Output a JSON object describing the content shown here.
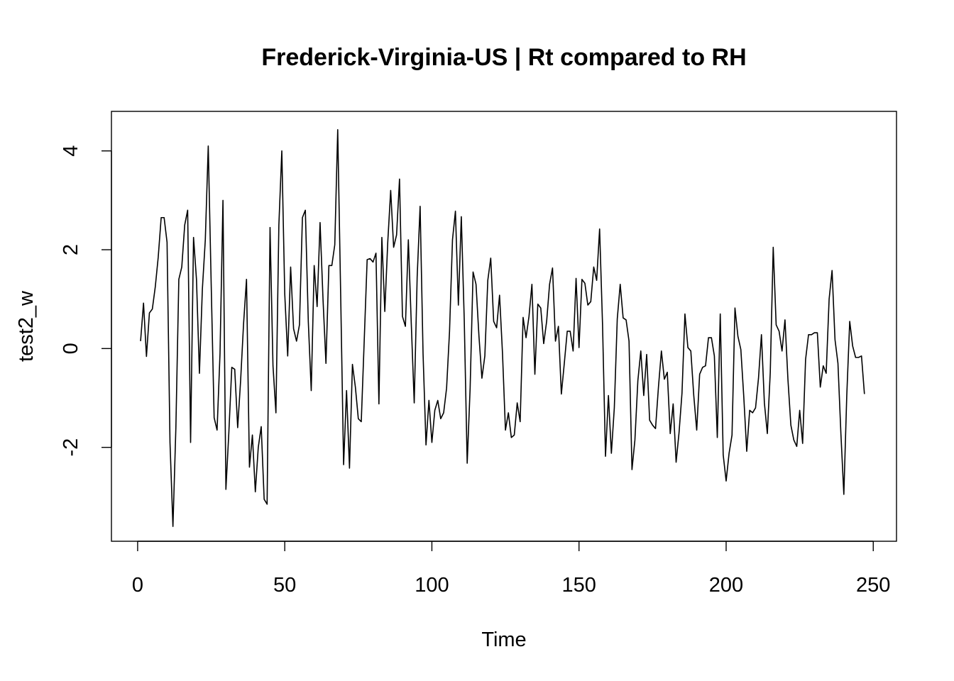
{
  "chart_data": {
    "type": "line",
    "title": "Frederick-Virginia-US | Rt compared to RH",
    "xlabel": "Time",
    "ylabel": "test2_w",
    "xlim": [
      -8.9,
      257.9
    ],
    "ylim": [
      -3.9,
      4.8
    ],
    "xticks": [
      0,
      50,
      100,
      150,
      200,
      250
    ],
    "yticks": [
      -2,
      0,
      2,
      4
    ],
    "grid": false,
    "box": true,
    "line_color": "#000000",
    "series": [
      {
        "values": [
          0.15,
          0.92,
          -0.16,
          0.72,
          0.8,
          1.25,
          1.85,
          2.65,
          2.65,
          2.15,
          -1.9,
          -3.6,
          -1.6,
          1.4,
          1.65,
          2.5,
          2.8,
          -1.9,
          2.25,
          1.4,
          -0.5,
          1.2,
          2.2,
          4.1,
          1.3,
          -1.4,
          -1.65,
          -0.1,
          3.0,
          -2.85,
          -1.7,
          -0.38,
          -0.42,
          -1.6,
          -0.65,
          0.5,
          1.4,
          -2.4,
          -1.75,
          -2.9,
          -2.0,
          -1.58,
          -3.05,
          -3.15,
          2.45,
          -0.35,
          -1.3,
          2.5,
          4.0,
          1.1,
          -0.15,
          1.65,
          0.4,
          0.15,
          0.48,
          2.65,
          2.8,
          0.55,
          -0.85,
          1.68,
          0.85,
          2.55,
          1.0,
          -0.3,
          1.68,
          1.68,
          2.1,
          4.43,
          1.1,
          -2.35,
          -0.85,
          -2.42,
          -0.32,
          -0.78,
          -1.42,
          -1.48,
          0.15,
          1.8,
          1.82,
          1.75,
          1.93,
          -1.12,
          2.25,
          0.75,
          2.15,
          3.2,
          2.05,
          2.3,
          3.43,
          0.65,
          0.45,
          2.2,
          0.5,
          -1.1,
          1.45,
          2.88,
          -0.1,
          -1.95,
          -1.05,
          -1.9,
          -1.25,
          -1.05,
          -1.42,
          -1.3,
          -0.8,
          0.35,
          2.2,
          2.78,
          0.88,
          2.67,
          0.58,
          -2.32,
          -0.8,
          1.55,
          1.3,
          0.25,
          -0.6,
          -0.15,
          1.38,
          1.83,
          0.55,
          0.42,
          1.08,
          -0.1,
          -1.65,
          -1.3,
          -1.8,
          -1.75,
          -1.1,
          -1.48,
          0.63,
          0.22,
          0.65,
          1.3,
          -0.52,
          0.9,
          0.82,
          0.1,
          0.55,
          1.3,
          1.63,
          0.15,
          0.45,
          -0.92,
          -0.3,
          0.35,
          0.35,
          -0.05,
          1.42,
          0.02,
          1.4,
          1.32,
          0.88,
          0.95,
          1.65,
          1.38,
          2.42,
          0.48,
          -2.18,
          -0.95,
          -2.12,
          -1.2,
          0.6,
          1.3,
          0.62,
          0.58,
          0.15,
          -2.45,
          -1.85,
          -0.65,
          -0.05,
          -0.95,
          -0.12,
          -1.45,
          -1.55,
          -1.62,
          -0.78,
          -0.05,
          -0.62,
          -0.48,
          -1.72,
          -1.12,
          -2.3,
          -1.7,
          -0.9,
          0.7,
          0.02,
          -0.05,
          -0.95,
          -1.65,
          -0.52,
          -0.38,
          -0.35,
          0.22,
          0.22,
          -0.15,
          -1.8,
          0.7,
          -2.15,
          -2.68,
          -2.12,
          -1.75,
          0.82,
          0.25,
          -0.02,
          -0.98,
          -2.08,
          -1.25,
          -1.3,
          -1.2,
          -0.6,
          0.28,
          -1.1,
          -1.72,
          -0.48,
          2.05,
          0.48,
          0.35,
          -0.05,
          0.58,
          -0.62,
          -1.55,
          -1.85,
          -1.98,
          -1.25,
          -1.92,
          -0.22,
          0.28,
          0.28,
          0.32,
          0.32,
          -0.78,
          -0.35,
          -0.5,
          1.0,
          1.58,
          0.18,
          -0.3,
          -1.72,
          -2.95,
          -0.95,
          0.55,
          0.05,
          -0.18,
          -0.18,
          -0.15,
          -0.92
        ]
      }
    ]
  }
}
